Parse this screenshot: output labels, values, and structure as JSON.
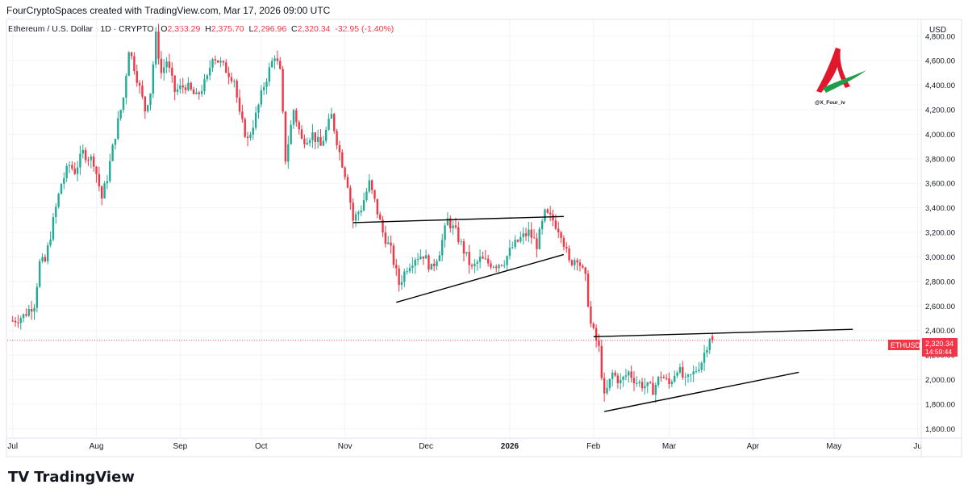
{
  "header": {
    "attribution": "FourCryptoSpaces created with TradingView.com, Mar 17, 2026 09:00 UTC"
  },
  "legend": {
    "symbol": "Ethereum / U.S. Dollar · 1D · CRYPTO",
    "o_label": "O",
    "o_value": "2,353.29",
    "h_label": "H",
    "h_value": "2,375.70",
    "l_label": "L",
    "l_value": "2,296.96",
    "c_label": "C",
    "c_value": "2,320.34",
    "change": "-32.95 (-1.40%)"
  },
  "watermark": {
    "handle": "@X_Four_iv"
  },
  "footer": {
    "brand": "TradingView"
  },
  "price_tag": {
    "symbol": "ETHUSD",
    "price": "2,320.34",
    "countdown": "14:59:44"
  },
  "colors": {
    "up": "#22ab94",
    "down": "#f23645",
    "trendline": "#000000",
    "grid": "#f0f3fa"
  },
  "chart_data": {
    "type": "candlestick",
    "title": "Ethereum / U.S. Dollar · 1D · CRYPTO",
    "currency_label": "USD",
    "y_ticks": [
      1600,
      1800,
      2000,
      2200,
      2400,
      2600,
      2800,
      3000,
      3200,
      3400,
      3600,
      3800,
      4000,
      4200,
      4400,
      4600,
      4800
    ],
    "y_tick_labels": [
      "1,600.00",
      "1,800.00",
      "2,000.00",
      "2,200.00",
      "2,400.00",
      "2,600.00",
      "2,800.00",
      "3,000.00",
      "3,200.00",
      "3,400.00",
      "3,600.00",
      "3,800.00",
      "4,000.00",
      "4,200.00",
      "4,400.00",
      "4,600.00",
      "4,800.00"
    ],
    "ylim": [
      1530,
      4930
    ],
    "x_labels": [
      {
        "date": "2025-07-01",
        "label": "Jul"
      },
      {
        "date": "2025-08-01",
        "label": "Aug"
      },
      {
        "date": "2025-09-01",
        "label": "Sep"
      },
      {
        "date": "2025-10-01",
        "label": "Oct"
      },
      {
        "date": "2025-11-01",
        "label": "Nov"
      },
      {
        "date": "2025-12-01",
        "label": "Dec"
      },
      {
        "date": "2026-01-01",
        "label": "2026"
      },
      {
        "date": "2026-02-01",
        "label": "Feb"
      },
      {
        "date": "2026-03-01",
        "label": "Mar"
      },
      {
        "date": "2026-04-01",
        "label": "Apr"
      },
      {
        "date": "2026-05-01",
        "label": "May"
      },
      {
        "date": "2026-06-01",
        "label": "Ju"
      }
    ],
    "xlim": [
      "2025-06-29",
      "2026-06-02"
    ],
    "close_series": [
      [
        "2025-07-01",
        2480
      ],
      [
        "2025-07-05",
        2520
      ],
      [
        "2025-07-09",
        2620
      ],
      [
        "2025-07-11",
        2950
      ],
      [
        "2025-07-13",
        2960
      ],
      [
        "2025-07-17",
        3400
      ],
      [
        "2025-07-19",
        3600
      ],
      [
        "2025-07-22",
        3750
      ],
      [
        "2025-07-24",
        3700
      ],
      [
        "2025-07-27",
        3850
      ],
      [
        "2025-07-31",
        3780
      ],
      [
        "2025-08-03",
        3480
      ],
      [
        "2025-08-05",
        3650
      ],
      [
        "2025-08-08",
        4000
      ],
      [
        "2025-08-11",
        4300
      ],
      [
        "2025-08-13",
        4700
      ],
      [
        "2025-08-15",
        4550
      ],
      [
        "2025-08-19",
        4200
      ],
      [
        "2025-08-21",
        4350
      ],
      [
        "2025-08-23",
        4800
      ],
      [
        "2025-08-25",
        4500
      ],
      [
        "2025-08-27",
        4600
      ],
      [
        "2025-08-30",
        4350
      ],
      [
        "2025-09-03",
        4400
      ],
      [
        "2025-09-07",
        4300
      ],
      [
        "2025-09-11",
        4450
      ],
      [
        "2025-09-13",
        4650
      ],
      [
        "2025-09-17",
        4550
      ],
      [
        "2025-09-21",
        4450
      ],
      [
        "2025-09-23",
        4150
      ],
      [
        "2025-09-26",
        3950
      ],
      [
        "2025-09-29",
        4150
      ],
      [
        "2025-10-02",
        4400
      ],
      [
        "2025-10-06",
        4650
      ],
      [
        "2025-10-08",
        4500
      ],
      [
        "2025-10-10",
        3800
      ],
      [
        "2025-10-13",
        4200
      ],
      [
        "2025-10-16",
        3950
      ],
      [
        "2025-10-20",
        4000
      ],
      [
        "2025-10-23",
        3900
      ],
      [
        "2025-10-27",
        4150
      ],
      [
        "2025-10-30",
        3850
      ],
      [
        "2025-11-02",
        3600
      ],
      [
        "2025-11-04",
        3300
      ],
      [
        "2025-11-07",
        3400
      ],
      [
        "2025-11-10",
        3600
      ],
      [
        "2025-11-12",
        3450
      ],
      [
        "2025-11-15",
        3200
      ],
      [
        "2025-11-18",
        3050
      ],
      [
        "2025-11-21",
        2780
      ],
      [
        "2025-11-24",
        2920
      ],
      [
        "2025-11-27",
        3000
      ],
      [
        "2025-11-30",
        3020
      ],
      [
        "2025-12-03",
        2900
      ],
      [
        "2025-12-06",
        3050
      ],
      [
        "2025-12-09",
        3300
      ],
      [
        "2025-12-12",
        3200
      ],
      [
        "2025-12-15",
        3050
      ],
      [
        "2025-12-18",
        2900
      ],
      [
        "2025-12-21",
        2980
      ],
      [
        "2025-12-24",
        2950
      ],
      [
        "2025-12-27",
        2940
      ],
      [
        "2025-12-30",
        2970
      ],
      [
        "2026-01-02",
        3080
      ],
      [
        "2026-01-05",
        3150
      ],
      [
        "2026-01-08",
        3200
      ],
      [
        "2026-01-11",
        3100
      ],
      [
        "2026-01-14",
        3350
      ],
      [
        "2026-01-17",
        3300
      ],
      [
        "2026-01-20",
        3200
      ],
      [
        "2026-01-23",
        2950
      ],
      [
        "2026-01-26",
        3000
      ],
      [
        "2026-01-29",
        2820
      ],
      [
        "2026-01-31",
        2450
      ],
      [
        "2026-02-03",
        2250
      ],
      [
        "2026-02-05",
        1850
      ],
      [
        "2026-02-08",
        2050
      ],
      [
        "2026-02-11",
        1980
      ],
      [
        "2026-02-14",
        2060
      ],
      [
        "2026-02-17",
        1980
      ],
      [
        "2026-02-20",
        1950
      ],
      [
        "2026-02-23",
        1920
      ],
      [
        "2026-02-26",
        2040
      ],
      [
        "2026-03-01",
        1960
      ],
      [
        "2026-03-04",
        2100
      ],
      [
        "2026-03-07",
        1980
      ],
      [
        "2026-03-10",
        2050
      ],
      [
        "2026-03-13",
        2150
      ],
      [
        "2026-03-16",
        2353
      ],
      [
        "2026-03-17",
        2320
      ]
    ],
    "trendlines": [
      {
        "name": "upper-1",
        "from": [
          "2025-11-04",
          3280
        ],
        "to": [
          "2026-01-21",
          3330
        ]
      },
      {
        "name": "lower-1",
        "from": [
          "2025-11-20",
          2630
        ],
        "to": [
          "2026-01-21",
          3020
        ]
      },
      {
        "name": "upper-2",
        "from": [
          "2026-02-01",
          2350
        ],
        "to": [
          "2026-05-08",
          2410
        ]
      },
      {
        "name": "lower-2",
        "from": [
          "2026-02-05",
          1740
        ],
        "to": [
          "2026-04-18",
          2060
        ]
      }
    ],
    "last": {
      "open": 2353.29,
      "high": 2375.7,
      "low": 2296.96,
      "close": 2320.34
    }
  }
}
